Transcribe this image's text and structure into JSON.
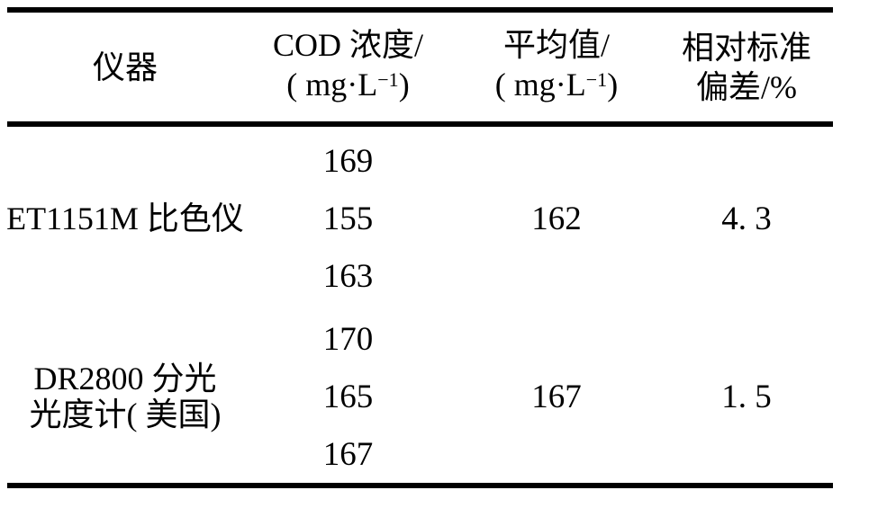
{
  "table": {
    "header": {
      "instrument": "仪器",
      "cod": {
        "line1": "COD 浓度/",
        "unit_prefix": "( mg·L",
        "unit_sup": "−1",
        "unit_suffix": ")"
      },
      "average": {
        "line1": "平均值/",
        "unit_prefix": "( mg·L",
        "unit_sup": "−1",
        "unit_suffix": ")"
      },
      "rsd": {
        "line1": "相对标准",
        "line2": "偏差/%"
      }
    },
    "groups": [
      {
        "instrument_line1": "ET1151M 比色仪",
        "values": [
          "169",
          "155",
          "163"
        ],
        "average": "162",
        "rsd": "4. 3"
      },
      {
        "instrument_line1": "DR2800 分光",
        "instrument_line2": "光度计( 美国)",
        "values": [
          "170",
          "165",
          "167"
        ],
        "average": "167",
        "rsd": "1. 5"
      }
    ]
  },
  "colors": {
    "text": "#000000",
    "rule": "#000000",
    "background": "#ffffff"
  }
}
